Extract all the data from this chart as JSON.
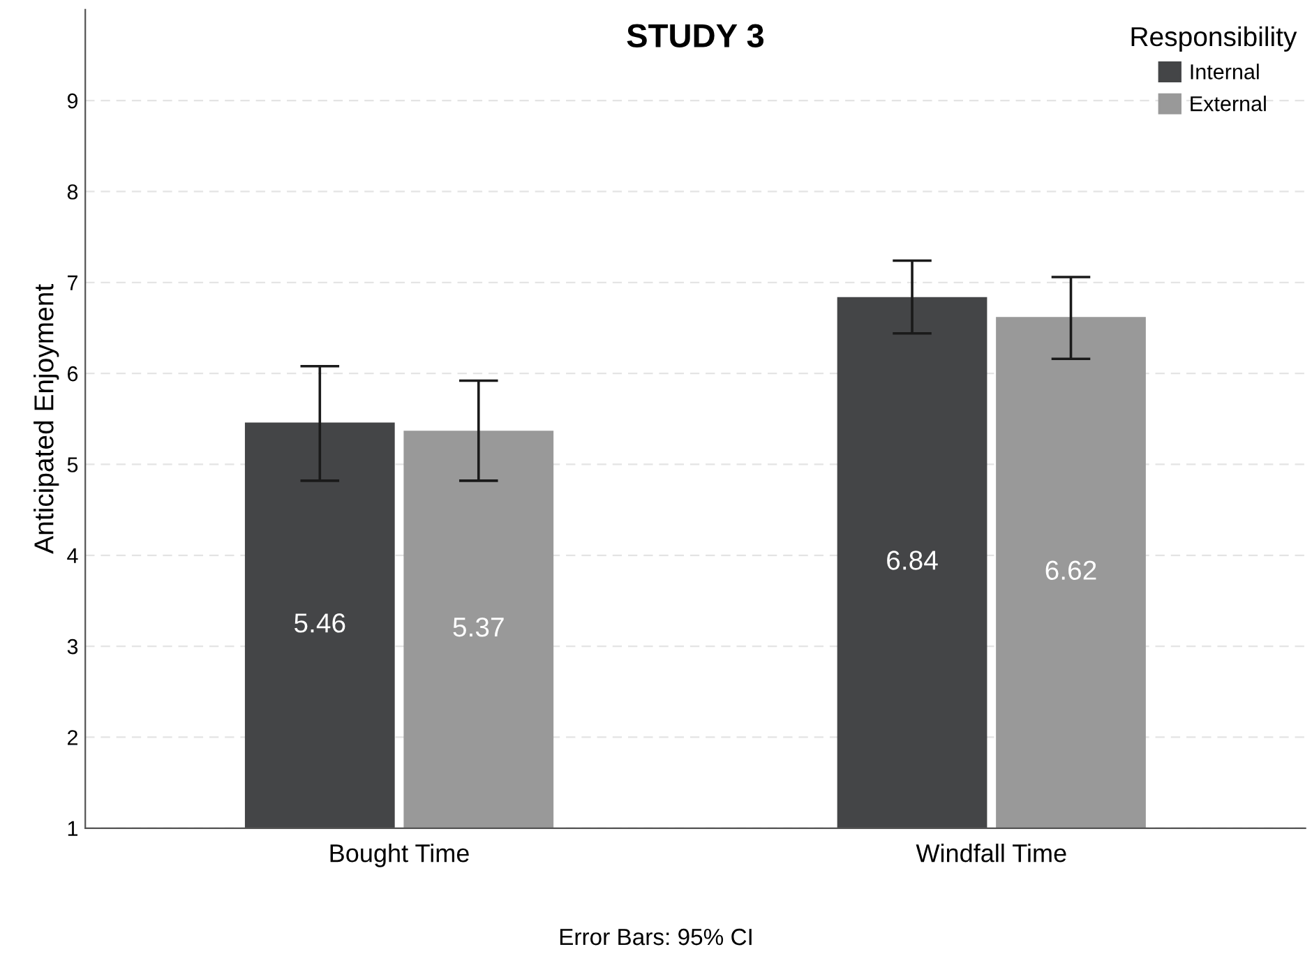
{
  "chart_data": {
    "type": "bar",
    "title": "STUDY 3",
    "ylabel": "Anticipated Enjoyment",
    "legend_title": "Responsibility",
    "categories": [
      "Bought Time",
      "Windfall Time"
    ],
    "series": [
      {
        "name": "Internal",
        "color": "#444547",
        "values": [
          5.46,
          6.84
        ],
        "errors": [
          [
            4.82,
            6.08
          ],
          [
            6.44,
            7.24
          ]
        ]
      },
      {
        "name": "External",
        "color": "#999999",
        "values": [
          5.37,
          6.62
        ],
        "errors": [
          [
            4.82,
            5.92
          ],
          [
            6.16,
            7.06
          ]
        ]
      }
    ],
    "ylim": [
      1,
      10
    ],
    "yticks": [
      1,
      2,
      3,
      4,
      5,
      6,
      7,
      8,
      9
    ],
    "grid": "y",
    "legend": "top right",
    "data_labels": true,
    "annotations": [
      "Error Bars: 95% CI"
    ]
  }
}
